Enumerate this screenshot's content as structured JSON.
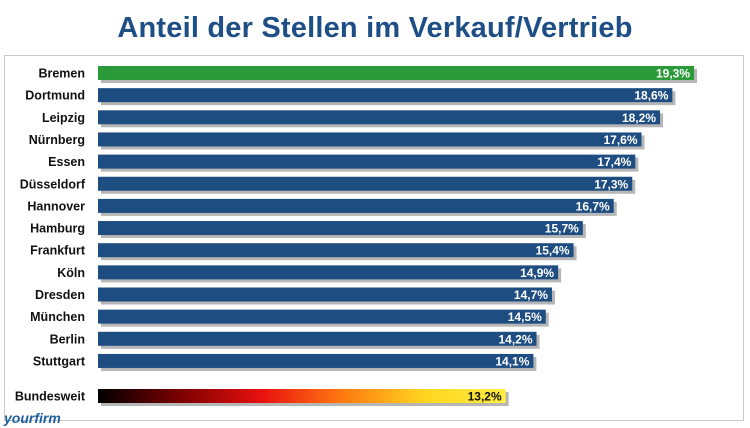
{
  "chart_data": {
    "type": "bar",
    "orientation": "horizontal",
    "title": "Anteil der Stellen im Verkauf/Vertrieb",
    "unit": "%",
    "xlim": [
      0,
      19.3
    ],
    "categories": [
      "Bremen",
      "Dortmund",
      "Leipzig",
      "Nürnberg",
      "Essen",
      "Düsseldorf",
      "Hannover",
      "Hamburg",
      "Frankfurt",
      "Köln",
      "Dresden",
      "München",
      "Berlin",
      "Stuttgart"
    ],
    "values": [
      19.3,
      18.6,
      18.2,
      17.6,
      17.4,
      17.3,
      16.7,
      15.7,
      15.4,
      14.9,
      14.7,
      14.5,
      14.2,
      14.1
    ],
    "value_labels": [
      "19,3%",
      "18,6%",
      "18,2%",
      "17,6%",
      "17,4%",
      "17,3%",
      "16,7%",
      "15,7%",
      "15,4%",
      "14,9%",
      "14,7%",
      "14,5%",
      "14,2%",
      "14,1%"
    ],
    "highlight_category": "Bremen",
    "summary": {
      "category": "Bundesweit",
      "value": 13.2,
      "value_label": "13,2%"
    },
    "colors": {
      "bar": "#1e4d82",
      "highlight": "#2b9a38",
      "summary_gradient": [
        "#000000",
        "#7a0000",
        "#e81010",
        "#ff7a10",
        "#ffd520",
        "#ffee40"
      ]
    }
  },
  "branding": {
    "logo_text": "yourfirm"
  }
}
